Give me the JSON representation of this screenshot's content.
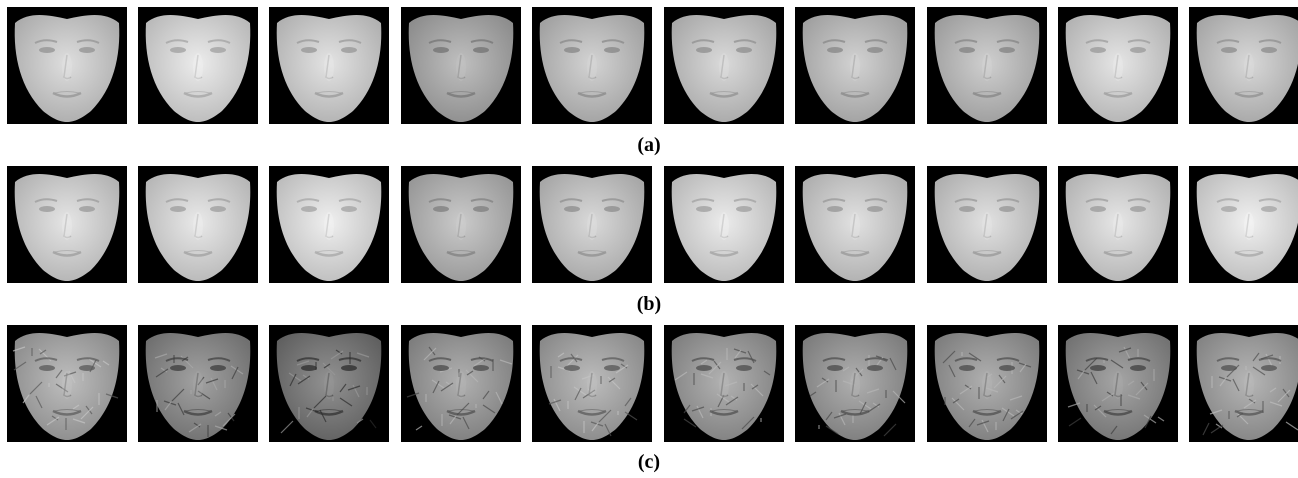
{
  "figure": {
    "rows": [
      {
        "id": "a",
        "caption": "(a)",
        "style": "original",
        "tones": [
          "#c8c8c8",
          "#d6d6d6",
          "#cdcdcd",
          "#a9a9a9",
          "#bdbdbd",
          "#c4c4c4",
          "#bcbcbc",
          "#b9b9b9",
          "#cfcfcf",
          "#c2c2c2"
        ]
      },
      {
        "id": "b",
        "caption": "(b)",
        "style": "smooth",
        "tones": [
          "#cfcfcf",
          "#d3d3d3",
          "#d9d9d9",
          "#b4b4b4",
          "#c3c3c3",
          "#d5d5d5",
          "#cbcbcb",
          "#cbcbcb",
          "#d0d0d0",
          "#dadada"
        ]
      },
      {
        "id": "c",
        "caption": "(c)",
        "style": "texture",
        "tones": [
          "#a8a8a8",
          "#8c8c8c",
          "#7c7c7c",
          "#9a9a9a",
          "#a6a6a6",
          "#9c9c9c",
          "#999999",
          "#9a9a9a",
          "#8f8f8f",
          "#a0a0a0"
        ]
      }
    ],
    "colors": {
      "background": "#000000",
      "caption": "#000000",
      "page": "#ffffff"
    }
  }
}
